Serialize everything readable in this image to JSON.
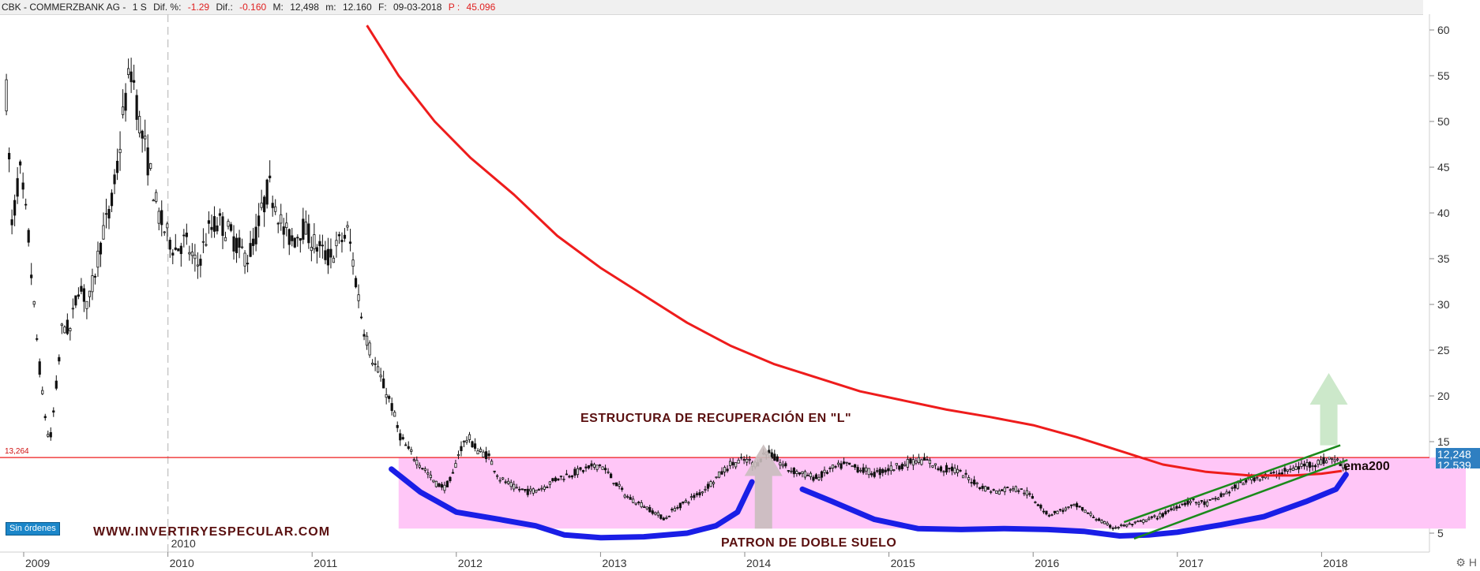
{
  "info_bar": {
    "symbol": "CBK - COMMERZBANK AG -",
    "timeframe": "1 S",
    "dif_pct_label": "Dif. %:",
    "dif_pct_value": "-1.29",
    "dif_label": "Dif.:",
    "dif_value": "-0.160",
    "max_label": "M:",
    "max_value": "12,498",
    "min_label": "m:",
    "min_value": "12.160",
    "date_label": "F:",
    "date_value": "09-03-2018",
    "price_label": "P :",
    "price_value": "45.096"
  },
  "orders_badge": "Sin órdenes",
  "price_badge": "12,248",
  "price_badge_sub": "12,539",
  "corner_icons": [
    "settings-icon",
    "h-icon"
  ],
  "colors": {
    "candles": "#111111",
    "ema200": "#ee1c1c",
    "support_line": "#ee1c1c",
    "zone_fill": "#ffc6f7",
    "bottom_pattern": "#1a1ee6",
    "channel": "#1b8a1b",
    "arrow": "#c7e6c4",
    "arrow_gray": "#c9bcbc",
    "annotation_text": "#5a1010"
  },
  "chart_data": {
    "type": "candlestick",
    "title": "CBK - COMMERZBANK AG",
    "xlabel": "",
    "ylabel": "",
    "x_ticks": [
      "2009",
      "2010",
      "2011",
      "2012",
      "2013",
      "2014",
      "2015",
      "2016",
      "2017",
      "2018"
    ],
    "x_tick_extra": "2010",
    "y_ticks": [
      5,
      10,
      15,
      20,
      25,
      30,
      35,
      40,
      45,
      50,
      55,
      60
    ],
    "ylim": [
      2,
      61
    ],
    "xlim": [
      2008.9,
      2019.0
    ],
    "grid": false,
    "price_path": [
      [
        2008.88,
        53
      ],
      [
        2008.92,
        38
      ],
      [
        2008.97,
        45
      ],
      [
        2009.03,
        38
      ],
      [
        2009.08,
        28
      ],
      [
        2009.13,
        20
      ],
      [
        2009.18,
        14.5
      ],
      [
        2009.22,
        20
      ],
      [
        2009.27,
        28
      ],
      [
        2009.32,
        27
      ],
      [
        2009.38,
        32
      ],
      [
        2009.45,
        30
      ],
      [
        2009.55,
        38
      ],
      [
        2009.6,
        40
      ],
      [
        2009.65,
        45
      ],
      [
        2009.7,
        52
      ],
      [
        2009.75,
        56
      ],
      [
        2009.8,
        50
      ],
      [
        2009.87,
        45
      ],
      [
        2009.93,
        40
      ],
      [
        2009.98,
        38
      ],
      [
        2010.05,
        36
      ],
      [
        2010.12,
        37
      ],
      [
        2010.2,
        34
      ],
      [
        2010.28,
        38
      ],
      [
        2010.35,
        39
      ],
      [
        2010.42,
        38
      ],
      [
        2010.5,
        36
      ],
      [
        2010.55,
        35
      ],
      [
        2010.6,
        37
      ],
      [
        2010.65,
        40
      ],
      [
        2010.7,
        43
      ],
      [
        2010.75,
        41
      ],
      [
        2010.8,
        38
      ],
      [
        2010.87,
        37
      ],
      [
        2010.93,
        38.5
      ],
      [
        2011.0,
        37
      ],
      [
        2011.05,
        36
      ],
      [
        2011.12,
        35
      ],
      [
        2011.2,
        37
      ],
      [
        2011.25,
        38
      ],
      [
        2011.3,
        33
      ],
      [
        2011.35,
        28
      ],
      [
        2011.42,
        24
      ],
      [
        2011.5,
        21
      ],
      [
        2011.55,
        19
      ],
      [
        2011.6,
        16
      ],
      [
        2011.65,
        14.5
      ],
      [
        2011.72,
        13
      ],
      [
        2011.78,
        12
      ],
      [
        2011.85,
        10.5
      ],
      [
        2011.92,
        10
      ],
      [
        2011.97,
        11
      ],
      [
        2012.02,
        14
      ],
      [
        2012.08,
        15.5
      ],
      [
        2012.15,
        14
      ],
      [
        2012.22,
        13.5
      ],
      [
        2012.3,
        11
      ],
      [
        2012.4,
        10
      ],
      [
        2012.5,
        9.5
      ],
      [
        2012.6,
        10
      ],
      [
        2012.7,
        11
      ],
      [
        2012.8,
        11.5
      ],
      [
        2012.9,
        12
      ],
      [
        2013.0,
        12.5
      ],
      [
        2013.08,
        11
      ],
      [
        2013.18,
        9
      ],
      [
        2013.3,
        8
      ],
      [
        2013.4,
        7
      ],
      [
        2013.45,
        6.5
      ],
      [
        2013.5,
        7.5
      ],
      [
        2013.6,
        8.5
      ],
      [
        2013.7,
        9.5
      ],
      [
        2013.8,
        11
      ],
      [
        2013.9,
        12.5
      ],
      [
        2014.0,
        13
      ],
      [
        2014.08,
        12.5
      ],
      [
        2014.15,
        14
      ],
      [
        2014.22,
        13
      ],
      [
        2014.3,
        12
      ],
      [
        2014.4,
        11.5
      ],
      [
        2014.5,
        11
      ],
      [
        2014.6,
        12
      ],
      [
        2014.7,
        12.5
      ],
      [
        2014.8,
        12
      ],
      [
        2014.9,
        11.5
      ],
      [
        2015.0,
        12
      ],
      [
        2015.1,
        12.5
      ],
      [
        2015.2,
        13
      ],
      [
        2015.28,
        12.8
      ],
      [
        2015.35,
        12
      ],
      [
        2015.45,
        12
      ],
      [
        2015.55,
        11
      ],
      [
        2015.65,
        10
      ],
      [
        2015.75,
        9.5
      ],
      [
        2015.85,
        10
      ],
      [
        2015.95,
        9.5
      ],
      [
        2016.05,
        8
      ],
      [
        2016.1,
        7
      ],
      [
        2016.2,
        7.5
      ],
      [
        2016.3,
        8
      ],
      [
        2016.4,
        7
      ],
      [
        2016.48,
        6.2
      ],
      [
        2016.55,
        5.6
      ],
      [
        2016.62,
        5.8
      ],
      [
        2016.7,
        6
      ],
      [
        2016.8,
        6.5
      ],
      [
        2016.9,
        7
      ],
      [
        2017.0,
        8
      ],
      [
        2017.1,
        8.5
      ],
      [
        2017.2,
        8.2
      ],
      [
        2017.3,
        9
      ],
      [
        2017.4,
        10
      ],
      [
        2017.5,
        11
      ],
      [
        2017.6,
        11.2
      ],
      [
        2017.7,
        11.5
      ],
      [
        2017.8,
        12
      ],
      [
        2017.9,
        12.5
      ],
      [
        2018.0,
        12.8
      ],
      [
        2018.07,
        13.2
      ],
      [
        2018.12,
        12.7
      ],
      [
        2018.17,
        12.3
      ]
    ],
    "ema200": [
      [
        2011.38,
        60.5
      ],
      [
        2011.6,
        55
      ],
      [
        2011.85,
        50
      ],
      [
        2012.1,
        46
      ],
      [
        2012.4,
        42
      ],
      [
        2012.7,
        37.5
      ],
      [
        2013.0,
        34
      ],
      [
        2013.3,
        31
      ],
      [
        2013.6,
        28
      ],
      [
        2013.9,
        25.5
      ],
      [
        2014.2,
        23.5
      ],
      [
        2014.5,
        22
      ],
      [
        2014.8,
        20.5
      ],
      [
        2015.1,
        19.5
      ],
      [
        2015.4,
        18.5
      ],
      [
        2015.7,
        17.7
      ],
      [
        2016.0,
        16.8
      ],
      [
        2016.3,
        15.5
      ],
      [
        2016.6,
        14
      ],
      [
        2016.9,
        12.5
      ],
      [
        2017.2,
        11.7
      ],
      [
        2017.5,
        11.3
      ],
      [
        2017.8,
        11.3
      ],
      [
        2018.0,
        11.5
      ],
      [
        2018.14,
        11.8
      ]
    ],
    "support_level": 13.264,
    "support_label": "13,264",
    "zone": {
      "x": [
        2011.6,
        2019.0
      ],
      "y": [
        5.5,
        13.264
      ]
    },
    "blue_curves": [
      [
        [
          2011.55,
          12
        ],
        [
          2011.75,
          9.5
        ],
        [
          2012.0,
          7.3
        ],
        [
          2012.3,
          6.5
        ],
        [
          2012.55,
          5.8
        ],
        [
          2012.75,
          4.8
        ],
        [
          2013.0,
          4.5
        ],
        [
          2013.3,
          4.6
        ],
        [
          2013.6,
          5
        ],
        [
          2013.8,
          5.8
        ],
        [
          2013.95,
          7.3
        ],
        [
          2014.05,
          10.6
        ]
      ],
      [
        [
          2014.4,
          9.8
        ],
        [
          2014.6,
          8.5
        ],
        [
          2014.9,
          6.5
        ],
        [
          2015.2,
          5.5
        ],
        [
          2015.5,
          5.4
        ],
        [
          2015.8,
          5.5
        ],
        [
          2016.1,
          5.4
        ],
        [
          2016.35,
          5.2
        ],
        [
          2016.6,
          4.7
        ],
        [
          2016.8,
          4.8
        ],
        [
          2017.0,
          5.1
        ],
        [
          2017.3,
          5.9
        ],
        [
          2017.6,
          6.8
        ],
        [
          2017.9,
          8.5
        ],
        [
          2018.1,
          9.8
        ],
        [
          2018.17,
          11.4
        ]
      ]
    ],
    "channel_lines": [
      [
        [
          2016.63,
          6.2
        ],
        [
          2018.13,
          14.6
        ]
      ],
      [
        [
          2016.7,
          4.4
        ],
        [
          2018.18,
          13.0
        ]
      ]
    ],
    "annotations": {
      "title_L": "ESTRUCTURA DE RECUPERACIÓN EN \"L\"",
      "double_bottom": "PATRON DE DOBLE SUELO",
      "website": "WWW.INVERTIRYESPECULAR.COM",
      "ema": "ema200"
    },
    "arrows": [
      {
        "x": 2014.13,
        "y_from": 5.5,
        "y_to": 14.7,
        "color": "gray"
      },
      {
        "x": 2018.05,
        "y_from": 14.6,
        "y_to": 22.5,
        "color": "green"
      }
    ]
  }
}
